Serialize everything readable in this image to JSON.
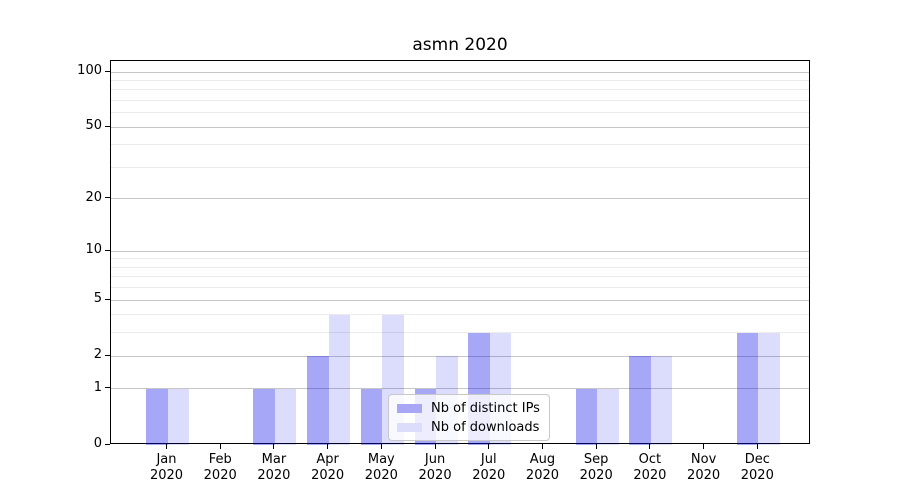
{
  "chart_data": {
    "type": "bar",
    "title": "asmn 2020",
    "categories": [
      "Jan",
      "Feb",
      "Mar",
      "Apr",
      "May",
      "Jun",
      "Jul",
      "Aug",
      "Sep",
      "Oct",
      "Nov",
      "Dec"
    ],
    "xtick_year": "2020",
    "series": [
      {
        "name": "Nb of distinct IPs",
        "values": [
          1,
          0,
          1,
          2,
          1,
          1,
          3,
          0,
          1,
          2,
          0,
          3
        ],
        "fill": "rgba(10,10,235,0.36)",
        "swatch": "#a7a7f6"
      },
      {
        "name": "Nb of downloads",
        "values": [
          1,
          0,
          1,
          4,
          4,
          2,
          3,
          0,
          1,
          2,
          0,
          3
        ],
        "fill": "rgba(10,10,235,0.14)",
        "swatch": "#dcdcfb"
      }
    ],
    "xlabel": "",
    "ylabel": "",
    "y_axis": {
      "scale": "log(value+1)",
      "tick_labels": [
        0,
        1,
        2,
        5,
        10,
        20,
        50,
        100
      ],
      "minor_gridlines": [
        3,
        4,
        6,
        7,
        8,
        9,
        30,
        40,
        60,
        70,
        80,
        90
      ],
      "ylim": [
        0,
        114
      ]
    },
    "grid": "on",
    "legend_position": "lower center"
  },
  "colors": {
    "bar_dark": "#a7a7f6",
    "bar_light": "#dcdcfb",
    "grid_major": "#c6c6c6",
    "grid_minor": "#ebebeb",
    "spine": "#000000",
    "text": "#000000",
    "legend_border": "#c8c8c8",
    "background": "#ffffff"
  }
}
